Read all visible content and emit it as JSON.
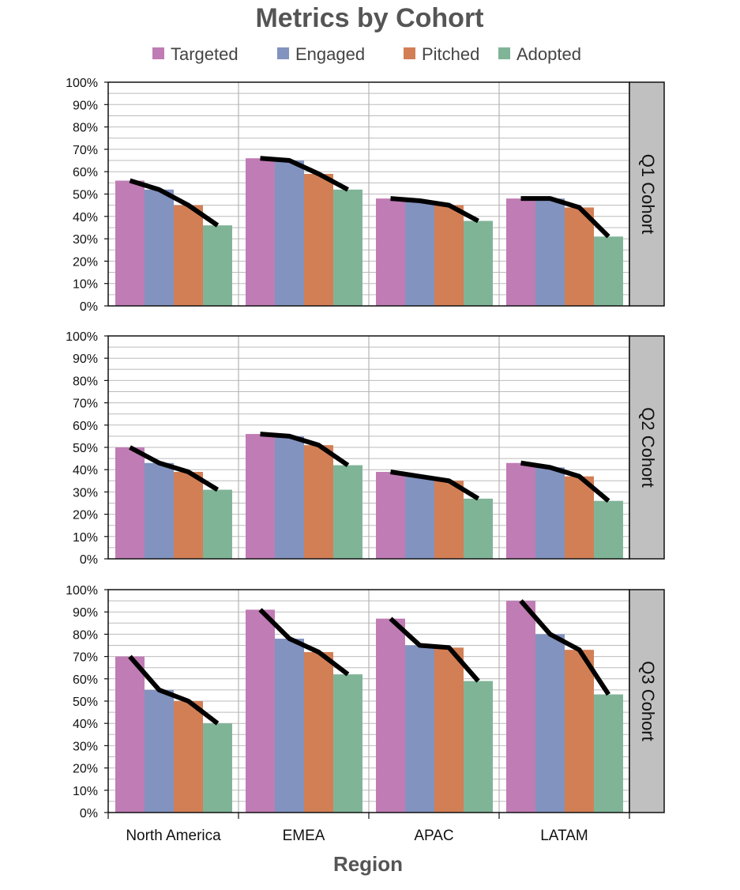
{
  "chart_data": {
    "type": "bar",
    "title": "Metrics by Cohort",
    "xlabel": "Region",
    "ylabel": "",
    "ylim": [
      0,
      100
    ],
    "y_ticks": [
      "0%",
      "10%",
      "20%",
      "30%",
      "40%",
      "50%",
      "60%",
      "70%",
      "80%",
      "90%",
      "100%"
    ],
    "categories": [
      "North America",
      "EMEA",
      "APAC",
      "LATAM"
    ],
    "series_names": [
      "Targeted",
      "Engaged",
      "Pitched",
      "Adopted"
    ],
    "colors": {
      "Targeted": "#c07cb5",
      "Engaged": "#8293c0",
      "Pitched": "#d37f55",
      "Adopted": "#80b497",
      "trend_line": "#000000",
      "strip": "#c0c0c0",
      "grid": "#bbbbbb"
    },
    "legend_position": "top",
    "grid": true,
    "trend_lines": true,
    "panels": [
      {
        "strip_label": "Q1 Cohort",
        "values": {
          "North America": [
            56,
            52,
            45,
            36
          ],
          "EMEA": [
            66,
            65,
            59,
            52
          ],
          "APAC": [
            48,
            47,
            45,
            38
          ],
          "LATAM": [
            48,
            48,
            44,
            31
          ]
        }
      },
      {
        "strip_label": "Q2 Cohort",
        "values": {
          "North America": [
            50,
            43,
            39,
            31
          ],
          "EMEA": [
            56,
            55,
            51,
            42
          ],
          "APAC": [
            39,
            37,
            35,
            27
          ],
          "LATAM": [
            43,
            41,
            37,
            26
          ]
        }
      },
      {
        "strip_label": "Q3 Cohort",
        "values": {
          "North America": [
            70,
            55,
            50,
            40
          ],
          "EMEA": [
            91,
            78,
            72,
            62
          ],
          "APAC": [
            87,
            75,
            74,
            59
          ],
          "LATAM": [
            95,
            80,
            73,
            53
          ]
        }
      }
    ]
  }
}
